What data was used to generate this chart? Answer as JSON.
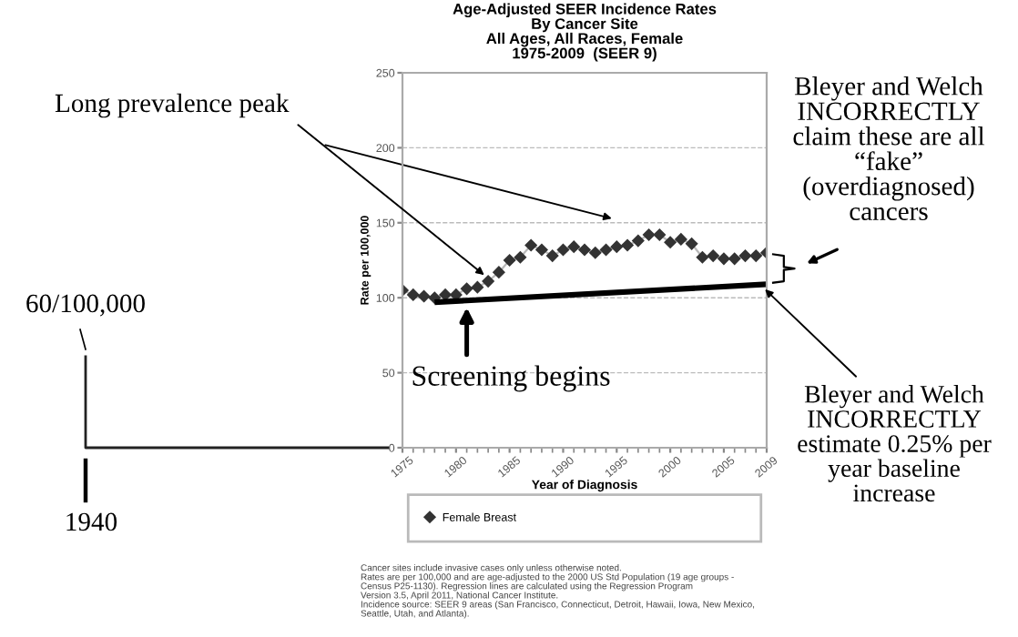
{
  "chart_data": {
    "type": "line",
    "title": "Age-Adjusted SEER Incidence Rates\nBy Cancer Site\nAll Ages, All Races, Female\n1975-2009  (SEER 9)",
    "xlabel": "Year of Diagnosis",
    "ylabel": "Rate per 100,000",
    "x": [
      1975,
      1976,
      1977,
      1978,
      1979,
      1980,
      1981,
      1982,
      1983,
      1984,
      1985,
      1986,
      1987,
      1988,
      1989,
      1990,
      1991,
      1992,
      1993,
      1994,
      1995,
      1996,
      1997,
      1998,
      1999,
      2000,
      2001,
      2002,
      2003,
      2004,
      2005,
      2006,
      2007,
      2008,
      2009
    ],
    "series": [
      {
        "name": "Female Breast",
        "color": "#333333",
        "marker": "diamond",
        "values": [
          105,
          102,
          101,
          100,
          102,
          102,
          106,
          107,
          111,
          117,
          125,
          127,
          135,
          132,
          128,
          132,
          134,
          132,
          130,
          132,
          134,
          135,
          138,
          142,
          142,
          137,
          139,
          136,
          127,
          128,
          126,
          126,
          128,
          128,
          130
        ]
      },
      {
        "type": "line",
        "x": [
          1978,
          2009
        ],
        "color": "#000000",
        "marker": "none",
        "values": [
          97,
          109
        ]
      }
    ],
    "xlim": [
      1975,
      2009
    ],
    "xticks": [
      1975,
      1980,
      1985,
      1990,
      1995,
      2000,
      2005,
      2009
    ],
    "ylim": [
      0,
      250
    ],
    "yticks": [
      0,
      50,
      100,
      150,
      200,
      250
    ],
    "grid": "y",
    "legend": "bottom",
    "annotations": [
      {
        "text": "Long prevalence peak",
        "x": 1983,
        "y": 113
      },
      {
        "text": "Screening begins",
        "x": 1981,
        "y": 97
      },
      "Bleyer and Welch\nINCORRECTLY\nclaim these are all\n“fake”\n(overdiagnosed)\ncancers",
      {
        "text": "Bleyer and Welch\nINCORRECTLY\nestimate 0.25% per\nyear baseline\nincrease",
        "x": 2008.5,
        "y": 108
      },
      "60/100,000",
      "1940",
      "Cancer sites include invasive cases only unless otherwise noted.\nRates are per 100,000 and are age-adjusted to the 2000 US Std Population (19 age groups -\nCensus P25-1130). Regression lines are calculated using the Regression Program\nVersion 3.5, April 2011, National Cancer Institute.\nIncidence source: SEER 9 areas (San Francisco, Connecticut, Detroit, Hawaii, Iowa, New Mexico,\nSeattle, Utah, and Atlanta)."
    ]
  }
}
